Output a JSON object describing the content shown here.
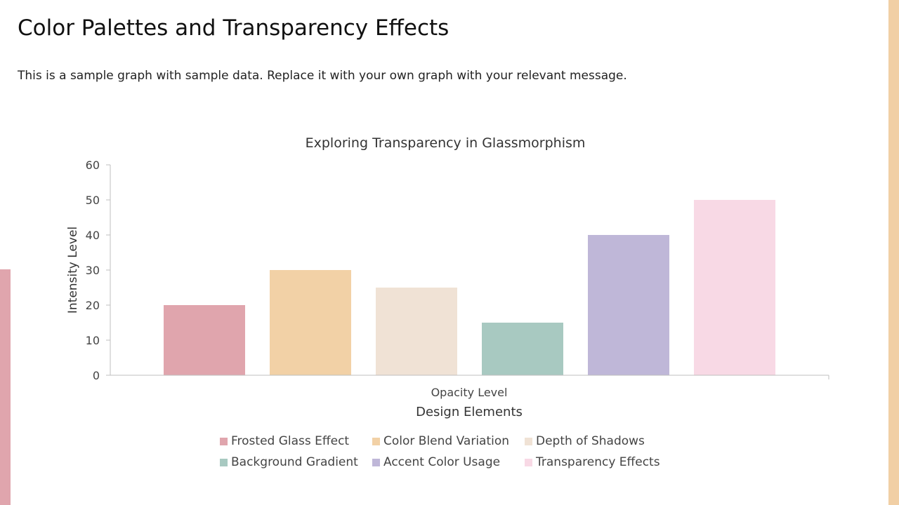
{
  "slide": {
    "title": "Color Palettes and Transparency Effects",
    "subtitle": "This is a sample graph with sample data. Replace it with your own graph with your relevant message."
  },
  "colors": {
    "accent_right": "#f1cfa5",
    "accent_left": "#e0a5ad"
  },
  "chart_data": {
    "type": "bar",
    "title": "Exploring Transparency in Glassmorphism",
    "xlabel": "Design Elements",
    "category_label": "Opacity Level",
    "ylabel": "Intensity Level",
    "ylim": [
      0,
      60
    ],
    "yticks": [
      "0",
      "10",
      "20",
      "30",
      "40",
      "50",
      "60"
    ],
    "grid": false,
    "legend_position": "bottom",
    "categories": [
      "Opacity Level"
    ],
    "series": [
      {
        "name": "Frosted Glass Effect",
        "values": [
          20
        ],
        "color": "#e0a5ad"
      },
      {
        "name": "Color Blend Variation",
        "values": [
          30
        ],
        "color": "#f2d1a6"
      },
      {
        "name": "Depth of Shadows",
        "values": [
          25
        ],
        "color": "#f0e2d5"
      },
      {
        "name": "Background Gradient",
        "values": [
          15
        ],
        "color": "#a8c9c1"
      },
      {
        "name": "Accent Color Usage",
        "values": [
          40
        ],
        "color": "#bfb7d8"
      },
      {
        "name": "Transparency Effects",
        "values": [
          50
        ],
        "color": "#f8d9e5"
      }
    ]
  }
}
